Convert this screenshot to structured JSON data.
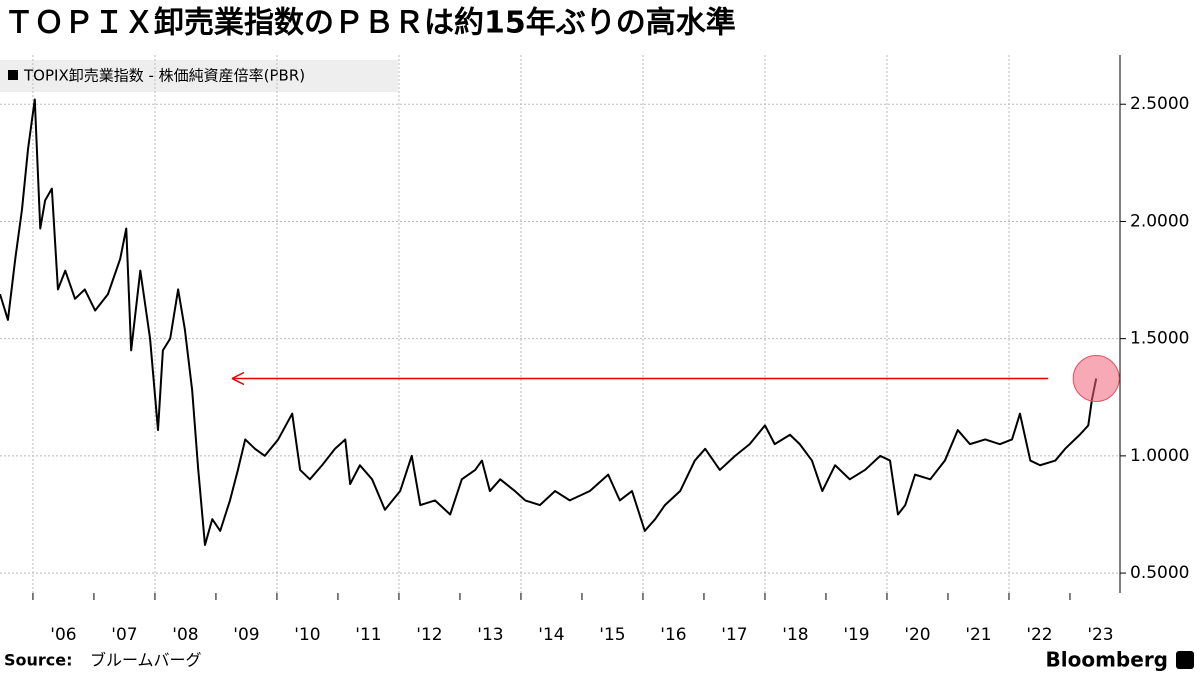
{
  "chart_data": {
    "type": "line",
    "title": "ＴＯＰＩＸ卸売業指数のＰＢＲは約15年ぶりの高水準",
    "source_label": "Source:",
    "source": "ブルームバーグ",
    "brand": "Bloomberg",
    "grid": true,
    "legend": "top-left",
    "xlim": [
      2005.46,
      2023.82
    ],
    "ylim": [
      0.415,
      2.71
    ],
    "yticks": [
      {
        "value": 0.5,
        "label": "0.5000"
      },
      {
        "value": 1.0,
        "label": "1.0000"
      },
      {
        "value": 1.5,
        "label": "1.5000"
      },
      {
        "value": 2.0,
        "label": "2.0000"
      },
      {
        "value": 2.5,
        "label": "2.5000"
      }
    ],
    "xticks": [
      {
        "value": 2006,
        "label": "'06"
      },
      {
        "value": 2007,
        "label": "'07"
      },
      {
        "value": 2008,
        "label": "'08"
      },
      {
        "value": 2009,
        "label": "'09"
      },
      {
        "value": 2010,
        "label": "'10"
      },
      {
        "value": 2011,
        "label": "'11"
      },
      {
        "value": 2012,
        "label": "'12"
      },
      {
        "value": 2013,
        "label": "'13"
      },
      {
        "value": 2014,
        "label": "'14"
      },
      {
        "value": 2015,
        "label": "'15"
      },
      {
        "value": 2016,
        "label": "'16"
      },
      {
        "value": 2017,
        "label": "'17"
      },
      {
        "value": 2018,
        "label": "'18"
      },
      {
        "value": 2019,
        "label": "'19"
      },
      {
        "value": 2020,
        "label": "'20"
      },
      {
        "value": 2021,
        "label": "'21"
      },
      {
        "value": 2022,
        "label": "'22"
      },
      {
        "value": 2023,
        "label": "'23"
      }
    ],
    "x": [
      2005.46,
      2005.59,
      2005.71,
      2005.82,
      2005.92,
      2006.03,
      2006.12,
      2006.2,
      2006.31,
      2006.41,
      2006.53,
      2006.69,
      2006.85,
      2007.02,
      2007.23,
      2007.43,
      2007.53,
      2007.61,
      2007.76,
      2007.92,
      2008.05,
      2008.13,
      2008.25,
      2008.38,
      2008.49,
      2008.61,
      2008.71,
      2008.82,
      2008.94,
      2009.07,
      2009.23,
      2009.36,
      2009.48,
      2009.64,
      2009.8,
      2010.02,
      2010.25,
      2010.38,
      2010.54,
      2010.74,
      2010.95,
      2011.12,
      2011.2,
      2011.36,
      2011.56,
      2011.77,
      2012.02,
      2012.21,
      2012.35,
      2012.59,
      2012.84,
      2013.03,
      2013.25,
      2013.36,
      2013.49,
      2013.66,
      2013.9,
      2014.07,
      2014.31,
      2014.56,
      2014.8,
      2015.13,
      2015.43,
      2015.62,
      2015.82,
      2016.03,
      2016.2,
      2016.36,
      2016.61,
      2016.85,
      2017.02,
      2017.26,
      2017.51,
      2017.75,
      2018.0,
      2018.16,
      2018.41,
      2018.57,
      2018.77,
      2018.94,
      2019.15,
      2019.39,
      2019.64,
      2019.89,
      2020.05,
      2020.18,
      2020.3,
      2020.46,
      2020.71,
      2020.95,
      2021.16,
      2021.36,
      2021.61,
      2021.85,
      2022.05,
      2022.18,
      2022.35,
      2022.51,
      2022.76,
      2022.92,
      2023.16,
      2023.3,
      2023.36,
      2023.43
    ],
    "series": [
      {
        "name": "TOPIX卸売業指数 - 株価純資産倍率(PBR)",
        "color": "#000000",
        "values": [
          1.69,
          1.58,
          1.84,
          2.05,
          2.31,
          2.52,
          1.97,
          2.09,
          2.14,
          1.71,
          1.79,
          1.67,
          1.71,
          1.62,
          1.69,
          1.84,
          1.97,
          1.45,
          1.79,
          1.5,
          1.11,
          1.45,
          1.5,
          1.71,
          1.54,
          1.28,
          0.94,
          0.62,
          0.73,
          0.68,
          0.81,
          0.94,
          1.07,
          1.03,
          1.0,
          1.07,
          1.18,
          0.94,
          0.9,
          0.96,
          1.03,
          1.07,
          0.88,
          0.96,
          0.9,
          0.77,
          0.85,
          1.0,
          0.79,
          0.81,
          0.75,
          0.9,
          0.94,
          0.98,
          0.85,
          0.9,
          0.85,
          0.81,
          0.79,
          0.85,
          0.81,
          0.85,
          0.92,
          0.81,
          0.85,
          0.68,
          0.73,
          0.79,
          0.85,
          0.98,
          1.03,
          0.94,
          1.0,
          1.05,
          1.13,
          1.05,
          1.09,
          1.05,
          0.98,
          0.85,
          0.96,
          0.9,
          0.94,
          1.0,
          0.98,
          0.75,
          0.79,
          0.92,
          0.9,
          0.98,
          1.11,
          1.05,
          1.07,
          1.05,
          1.07,
          1.18,
          0.98,
          0.96,
          0.98,
          1.03,
          1.09,
          1.13,
          1.24,
          1.33
        ]
      }
    ]
  }
}
